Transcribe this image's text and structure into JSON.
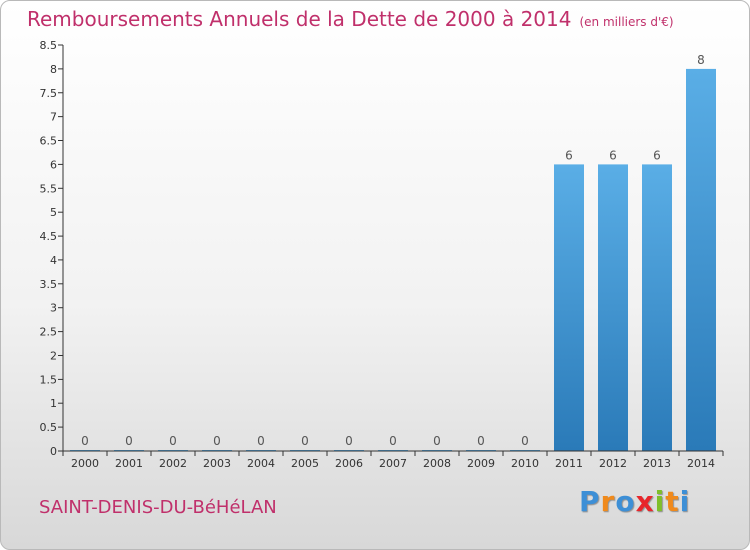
{
  "chart_data": {
    "type": "bar",
    "title": "Remboursements Annuels de la Dette de 2000 à 2014",
    "unit": "(en milliers d'€)",
    "categories": [
      "2000",
      "2001",
      "2002",
      "2003",
      "2004",
      "2005",
      "2006",
      "2007",
      "2008",
      "2009",
      "2010",
      "2011",
      "2012",
      "2013",
      "2014"
    ],
    "values": [
      0,
      0,
      0,
      0,
      0,
      0,
      0,
      0,
      0,
      0,
      0,
      6,
      6,
      6,
      8
    ],
    "value_labels": [
      "0",
      "0",
      "0",
      "0",
      "0",
      "0",
      "0",
      "0",
      "0",
      "0",
      "0",
      "6",
      "6",
      "6",
      "8"
    ],
    "y_ticks": [
      0,
      0.5,
      1,
      1.5,
      2,
      2.5,
      3,
      3.5,
      4,
      4.5,
      5,
      5.5,
      6,
      6.5,
      7,
      7.5,
      8,
      8.5
    ],
    "y_tick_labels": [
      "0",
      "0.5",
      "1",
      "1.5",
      "2",
      "2.5",
      "3",
      "3.5",
      "4",
      "4.5",
      "5",
      "5.5",
      "6",
      "6.5",
      "7",
      "7.5",
      "8",
      "8.5"
    ],
    "ylim": [
      0,
      8.5
    ],
    "xlabel": "",
    "ylabel": "",
    "grid": false,
    "colors": {
      "bar_light": "#5aaee6",
      "bar_dark": "#2a7ab8",
      "title": "#c0306b"
    }
  },
  "commune": "SAINT-DENIS-DU-BéHéLAN",
  "logo": {
    "letters": [
      "P",
      "r",
      "o",
      "x",
      "i",
      "t",
      "i"
    ],
    "colors": [
      "#3d8fd6",
      "#f08a1c",
      "#3d8fd6",
      "#e8262b",
      "#7fbf2a",
      "#f08a1c",
      "#3d8fd6"
    ]
  }
}
